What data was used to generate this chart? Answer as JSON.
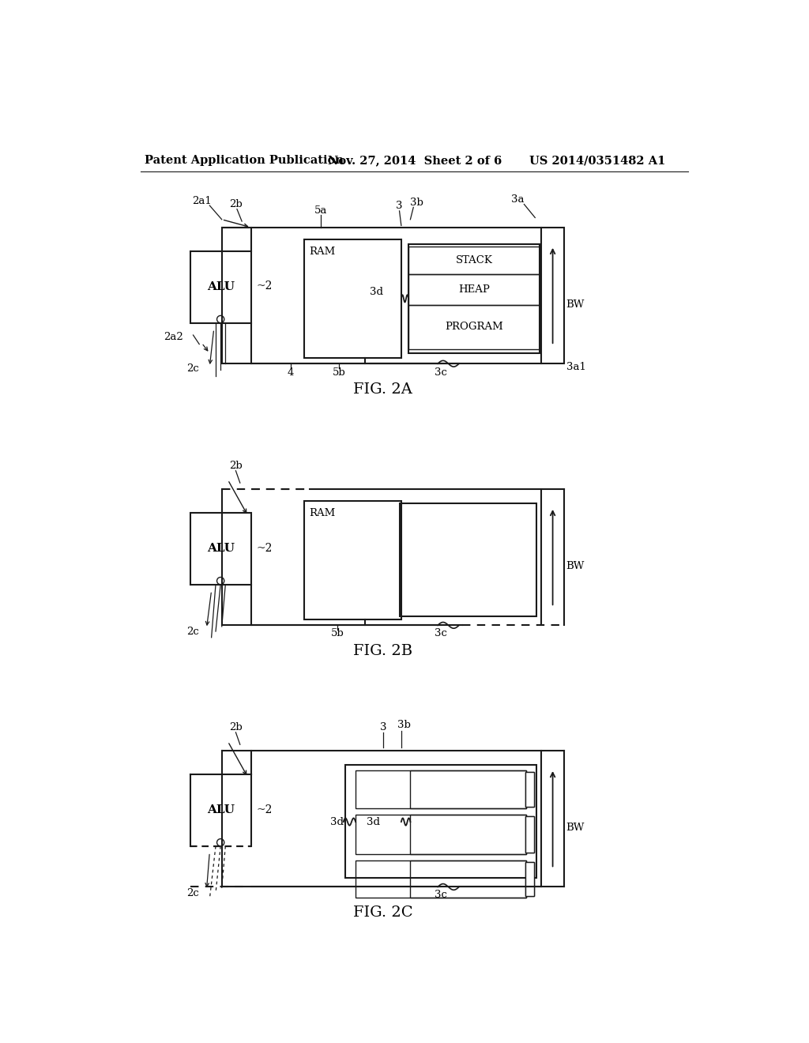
{
  "header_left": "Patent Application Publication",
  "header_center": "Nov. 27, 2014  Sheet 2 of 6",
  "header_right": "US 2014/0351482 A1",
  "bg_color": "#ffffff",
  "line_color": "#1a1a1a"
}
